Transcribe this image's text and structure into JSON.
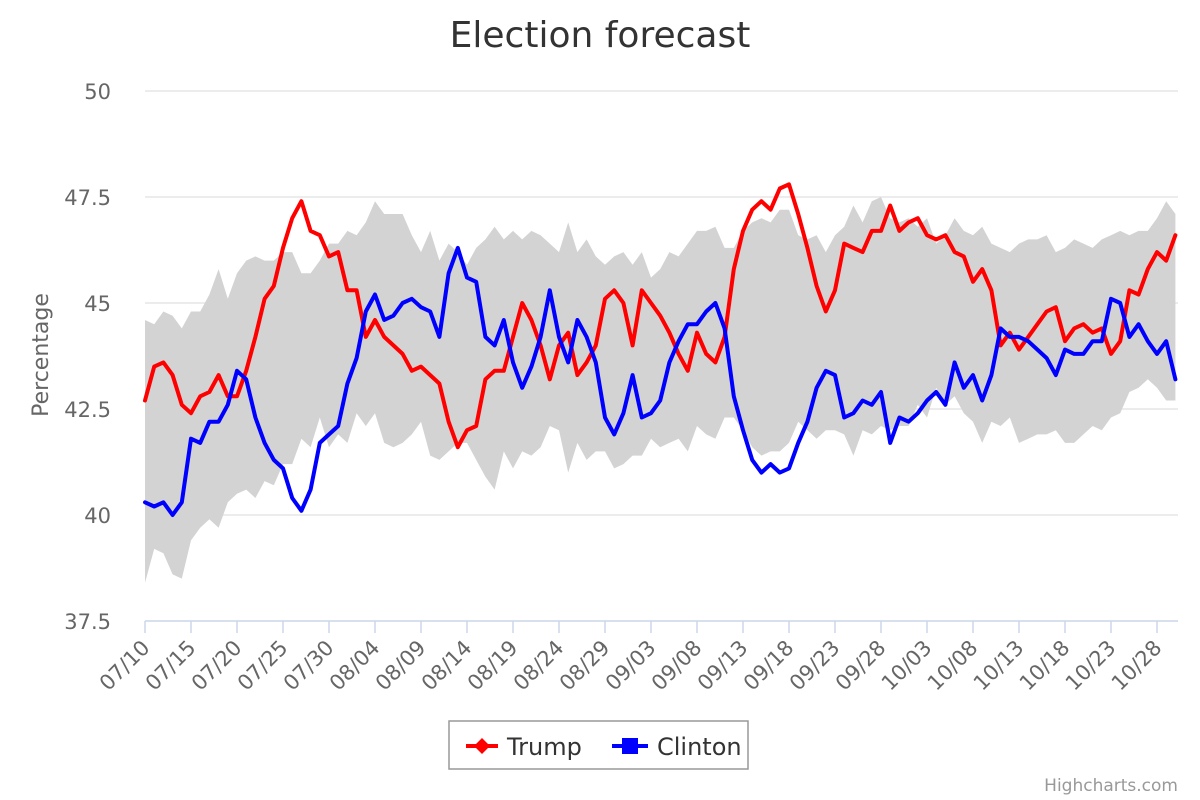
{
  "chart_data": {
    "type": "line",
    "title": "Election forecast",
    "ylabel": "Percentage",
    "xlabel": "",
    "ylim": [
      37.5,
      50
    ],
    "yticks": [
      37.5,
      40,
      42.5,
      45,
      47.5,
      50
    ],
    "x_tick_labels": [
      "07/10",
      "07/15",
      "07/20",
      "07/25",
      "07/30",
      "08/04",
      "08/09",
      "08/14",
      "08/19",
      "08/24",
      "08/29",
      "09/03",
      "09/08",
      "09/13",
      "09/18",
      "09/23",
      "09/28",
      "10/03",
      "10/08",
      "10/13",
      "10/18",
      "10/23",
      "10/28"
    ],
    "start_date": "07/10",
    "grid": true,
    "legend": "bottom-center",
    "series": [
      {
        "name": "Trump",
        "color": "#ff0000",
        "marker": "diamond",
        "values": [
          42.7,
          43.5,
          43.6,
          43.3,
          42.6,
          42.4,
          42.8,
          42.9,
          43.3,
          42.8,
          42.8,
          43.4,
          44.2,
          45.1,
          45.4,
          46.3,
          47.0,
          47.4,
          46.7,
          46.6,
          46.1,
          46.2,
          45.3,
          45.3,
          44.2,
          44.6,
          44.2,
          44.0,
          43.8,
          43.4,
          43.5,
          43.3,
          43.1,
          42.2,
          41.6,
          42.0,
          42.1,
          43.2,
          43.4,
          43.4,
          44.2,
          45.0,
          44.6,
          44.0,
          43.2,
          44.0,
          44.3,
          43.3,
          43.6,
          44.0,
          45.1,
          45.3,
          45.0,
          44.0,
          45.3,
          45.0,
          44.7,
          44.3,
          43.8,
          43.4,
          44.3,
          43.8,
          43.6,
          44.2,
          45.8,
          46.7,
          47.2,
          47.4,
          47.2,
          47.7,
          47.8,
          47.1,
          46.3,
          45.4,
          44.8,
          45.3,
          46.4,
          46.3,
          46.2,
          46.7,
          46.7,
          47.3,
          46.7,
          46.9,
          47.0,
          46.6,
          46.5,
          46.6,
          46.2,
          46.1,
          45.5,
          45.8,
          45.3,
          44.0,
          44.3,
          43.9,
          44.2,
          44.5,
          44.8,
          44.9,
          44.1,
          44.4,
          44.5,
          44.3,
          44.4,
          43.8,
          44.1,
          45.3,
          45.2,
          45.8,
          46.2,
          46.0,
          46.6
        ]
      },
      {
        "name": "Clinton",
        "color": "#0000ff",
        "marker": "square",
        "values": [
          40.3,
          40.2,
          40.3,
          40.0,
          40.3,
          41.8,
          41.7,
          42.2,
          42.2,
          42.6,
          43.4,
          43.2,
          42.3,
          41.7,
          41.3,
          41.1,
          40.4,
          40.1,
          40.6,
          41.7,
          41.9,
          42.1,
          43.1,
          43.7,
          44.8,
          45.2,
          44.6,
          44.7,
          45.0,
          45.1,
          44.9,
          44.8,
          44.2,
          45.7,
          46.3,
          45.6,
          45.5,
          44.2,
          44.0,
          44.6,
          43.6,
          43.0,
          43.5,
          44.2,
          45.3,
          44.2,
          43.6,
          44.6,
          44.2,
          43.6,
          42.3,
          41.9,
          42.4,
          43.3,
          42.3,
          42.4,
          42.7,
          43.6,
          44.1,
          44.5,
          44.5,
          44.8,
          45.0,
          44.4,
          42.8,
          42.0,
          41.3,
          41.0,
          41.2,
          41.0,
          41.1,
          41.7,
          42.2,
          43.0,
          43.4,
          43.3,
          42.3,
          42.4,
          42.7,
          42.6,
          42.9,
          41.7,
          42.3,
          42.2,
          42.4,
          42.7,
          42.9,
          42.6,
          43.6,
          43.0,
          43.3,
          42.7,
          43.3,
          44.4,
          44.2,
          44.2,
          44.1,
          43.9,
          43.7,
          43.3,
          43.9,
          43.8,
          43.8,
          44.1,
          44.1,
          45.1,
          45.0,
          44.2,
          44.5,
          44.1,
          43.8,
          44.1,
          43.2
        ]
      }
    ],
    "band": {
      "color": "#d3d3d3",
      "upper": [
        44.6,
        44.5,
        44.8,
        44.7,
        44.4,
        44.8,
        44.8,
        45.2,
        45.8,
        45.1,
        45.7,
        46.0,
        46.1,
        46.0,
        46.0,
        46.2,
        46.2,
        45.7,
        45.7,
        46.0,
        46.4,
        46.4,
        46.7,
        46.6,
        46.9,
        47.4,
        47.1,
        47.1,
        47.1,
        46.6,
        46.2,
        46.7,
        46.0,
        46.4,
        46.2,
        45.9,
        46.3,
        46.5,
        46.8,
        46.5,
        46.7,
        46.5,
        46.7,
        46.6,
        46.4,
        46.2,
        46.9,
        46.2,
        46.5,
        46.1,
        45.9,
        46.1,
        46.2,
        45.9,
        46.2,
        45.6,
        45.8,
        46.2,
        46.1,
        46.4,
        46.7,
        46.7,
        46.8,
        46.3,
        46.3,
        46.7,
        46.9,
        47.0,
        46.9,
        47.2,
        47.2,
        46.6,
        46.5,
        46.6,
        46.2,
        46.6,
        46.8,
        47.3,
        46.9,
        47.4,
        47.5,
        47.0,
        46.9,
        47.0,
        46.8,
        47.0,
        46.4,
        46.6,
        47.0,
        46.7,
        46.6,
        46.8,
        46.4,
        46.3,
        46.2,
        46.4,
        46.5,
        46.5,
        46.6,
        46.2,
        46.3,
        46.5,
        46.4,
        46.3,
        46.5,
        46.6,
        46.7,
        46.6,
        46.7,
        46.7,
        47.0,
        47.4,
        47.1
      ]
    }
  },
  "legend": {
    "items": [
      {
        "label": "Trump",
        "color": "#ff0000",
        "icon": "diamond-marker-icon"
      },
      {
        "label": "Clinton",
        "color": "#0000ff",
        "icon": "square-marker-icon"
      }
    ]
  },
  "credits": "Highcharts.com",
  "colors": {
    "grid": "#e6e6e6",
    "axis_line": "#ccd6eb",
    "band": "#d3d3d3",
    "title": "#333333",
    "tick_text": "#666666"
  }
}
